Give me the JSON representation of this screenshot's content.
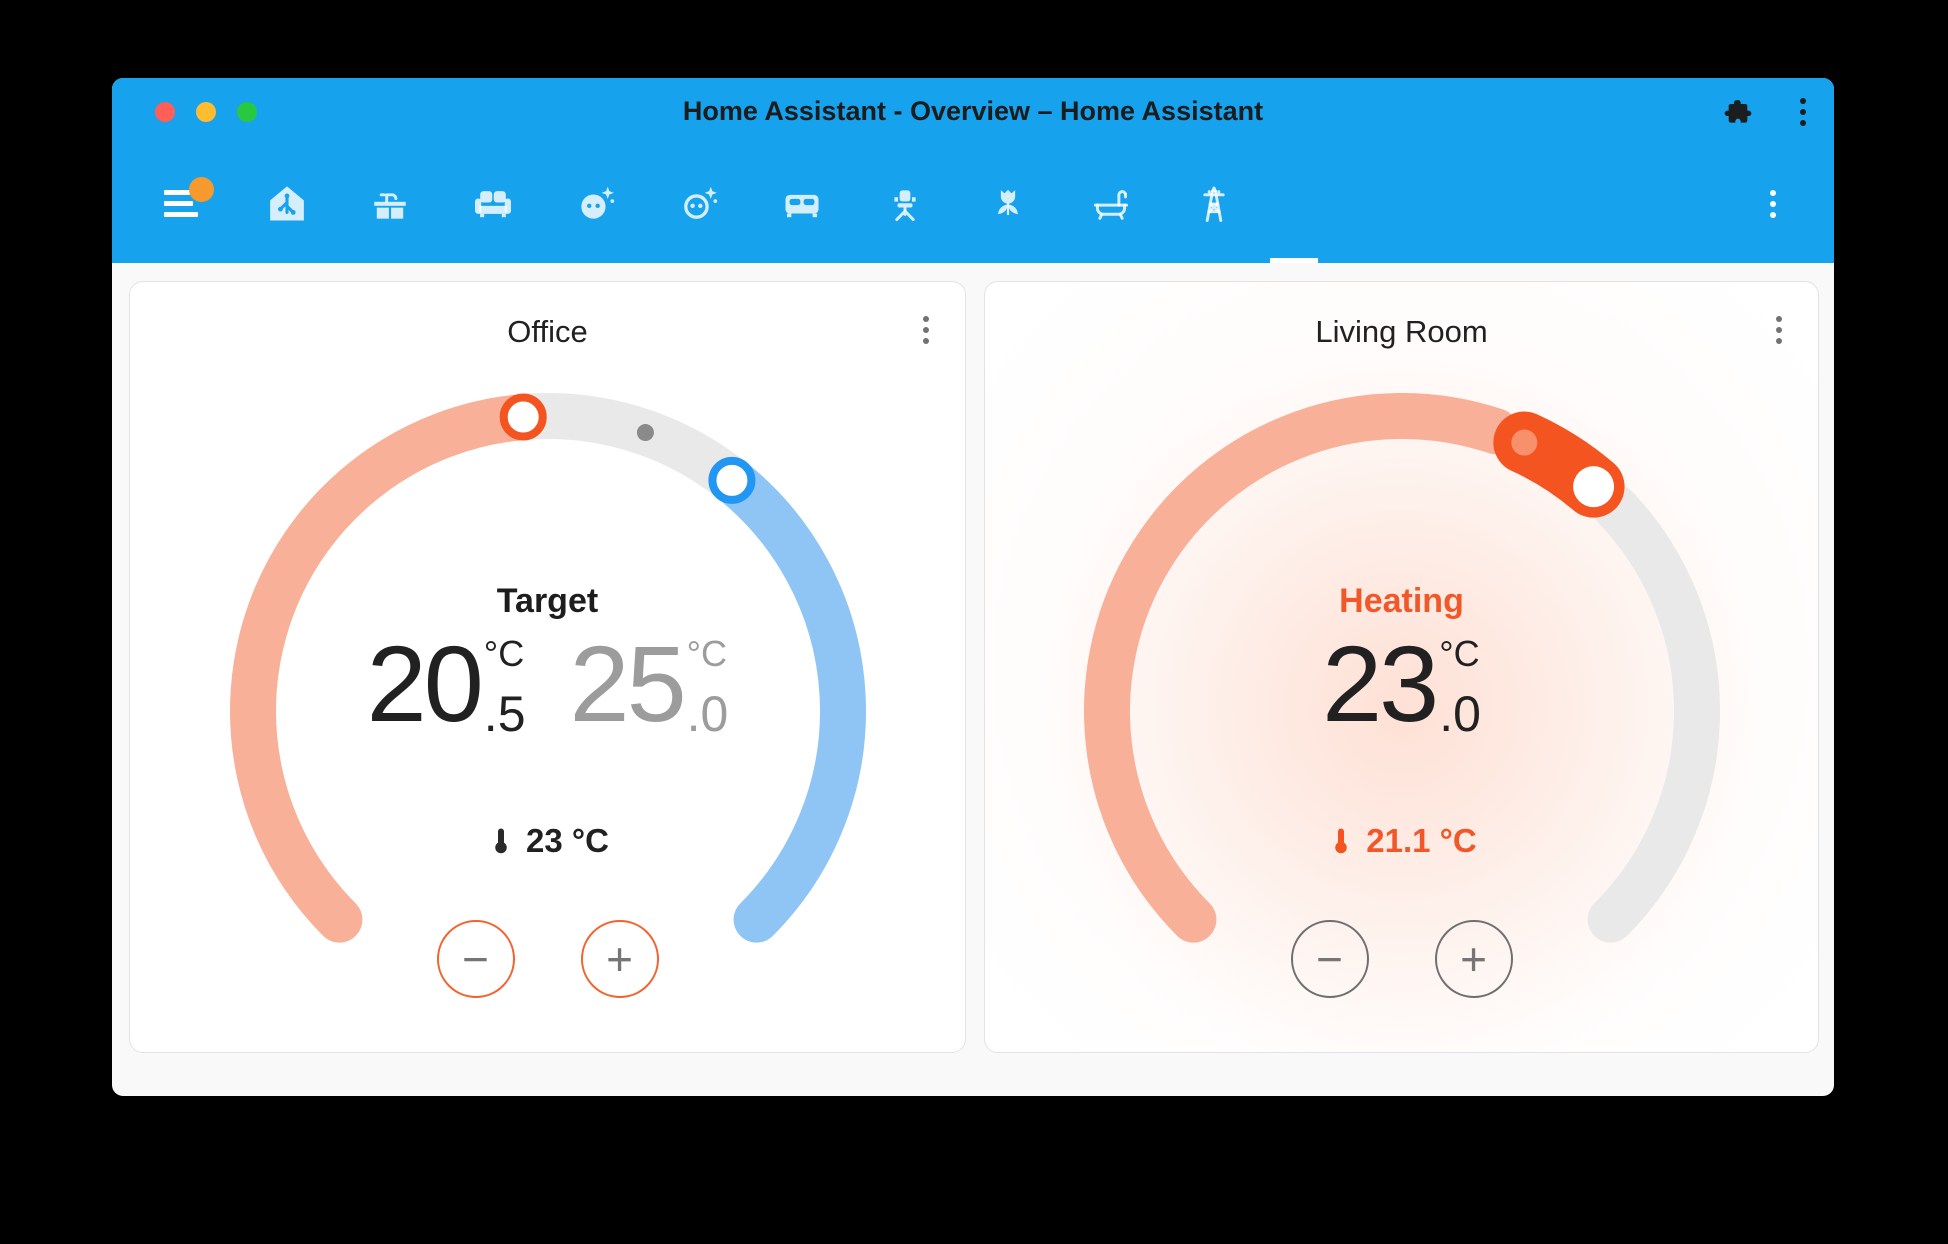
{
  "window": {
    "title": "Home Assistant - Overview – Home Assistant"
  },
  "titlebar": {
    "traffic_lights": [
      "close",
      "minimize",
      "fullscreen"
    ],
    "right_icons": [
      "extension-puzzle-icon",
      "overflow-menu-icon"
    ]
  },
  "toolbar": {
    "menu": {
      "icon": "sidebar-hamburger",
      "badge": true
    },
    "tabs": [
      {
        "icon": "home"
      },
      {
        "icon": "kitchen-countertop"
      },
      {
        "icon": "sofa"
      },
      {
        "icon": "face-shimmer"
      },
      {
        "icon": "face-shimmer-outline"
      },
      {
        "icon": "bed"
      },
      {
        "icon": "desk-chair"
      },
      {
        "icon": "flower-tulip"
      },
      {
        "icon": "bathtub"
      },
      {
        "icon": "transmission-tower"
      }
    ],
    "active_indicator": true,
    "overflow_icon": "kebab-menu"
  },
  "cards": [
    {
      "title": "Office",
      "state_label": "Target",
      "temps": [
        {
          "int": "20",
          "unit": "°C",
          "dec": ".5"
        },
        {
          "int": "25",
          "unit": "°C",
          "dec": ".0"
        }
      ],
      "current_label": "23 °C",
      "buttons": {
        "minus": "−",
        "plus": "+"
      },
      "slider": {
        "style": "dual",
        "min": 7,
        "max": 35,
        "target_low": 20.5,
        "target_high": 25.0,
        "current": 23
      }
    },
    {
      "title": "Living Room",
      "state_label": "Heating",
      "temps": [
        {
          "int": "23",
          "unit": "°C",
          "dec": ".0"
        }
      ],
      "current_label": "21.1 °C",
      "buttons": {
        "minus": "−",
        "plus": "+"
      },
      "slider": {
        "style": "heat",
        "min": 10,
        "max": 30,
        "target": 23.0,
        "current": 21.1
      }
    }
  ],
  "colors": {
    "header_blue": "#17A2ED",
    "badge_orange": "#F79A2E",
    "heat": "#F35420",
    "heat_light": "#F8906C",
    "heat_track": "#F8B198",
    "cool": "#2196F3",
    "cool_track": "#8FC5F4",
    "idle_track": "#E9E9E9",
    "current_dot": "#8A8A8A",
    "text_primary": "#212121",
    "text_secondary": "#9C9C9C"
  }
}
